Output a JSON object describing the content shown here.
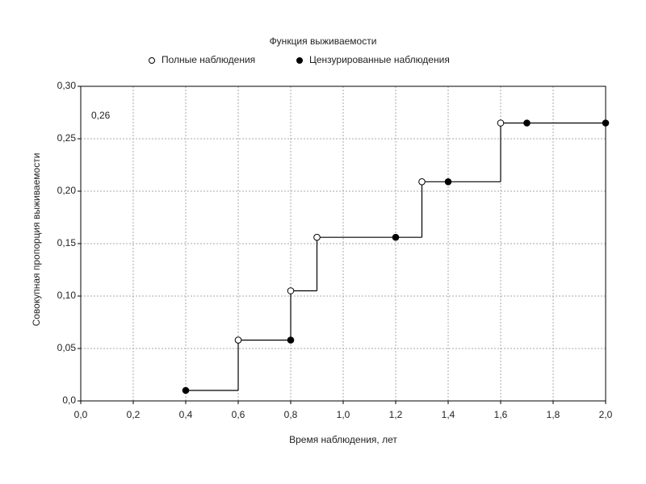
{
  "chart_data": {
    "type": "step",
    "title": "Функция выживаемости",
    "x_label": "Время наблюдения, лет",
    "y_label": "Совокупная пропорция выживаемости",
    "annotation": "0,26",
    "step_line": {
      "color": "#000000",
      "x": [
        0.4,
        0.6,
        0.8,
        0.9,
        1.3,
        1.6,
        2.0
      ],
      "values": [
        0.01,
        0.058,
        0.105,
        0.156,
        0.209,
        0.265,
        0.265
      ]
    },
    "series": [
      {
        "name": "Полные наблюдения",
        "marker": "open",
        "color": "#000000",
        "x": [
          0.6,
          0.8,
          0.9,
          1.3,
          1.6
        ],
        "values": [
          0.058,
          0.105,
          0.156,
          0.209,
          0.265
        ]
      },
      {
        "name": "Цензурированные наблюдения",
        "marker": "filled",
        "color": "#000000",
        "x": [
          0.4,
          0.8,
          1.2,
          1.4,
          1.7,
          2.0
        ],
        "values": [
          0.01,
          0.058,
          0.156,
          0.209,
          0.265,
          0.265
        ]
      }
    ],
    "xlim": [
      0.0,
      2.0
    ],
    "xticks": [
      {
        "value": 0.0,
        "label": "0,0"
      },
      {
        "value": 0.2,
        "label": "0,2"
      },
      {
        "value": 0.4,
        "label": "0,4"
      },
      {
        "value": 0.6,
        "label": "0,6"
      },
      {
        "value": 0.8,
        "label": "0,8"
      },
      {
        "value": 1.0,
        "label": "1,0"
      },
      {
        "value": 1.2,
        "label": "1,2"
      },
      {
        "value": 1.4,
        "label": "1,4"
      },
      {
        "value": 1.6,
        "label": "1,6"
      },
      {
        "value": 1.8,
        "label": "1,8"
      },
      {
        "value": 2.0,
        "label": "2,0"
      }
    ],
    "ylim": [
      0.0,
      0.3
    ],
    "yticks": [
      {
        "value": 0.0,
        "label": "0,0"
      },
      {
        "value": 0.05,
        "label": "0,05"
      },
      {
        "value": 0.1,
        "label": "0,10"
      },
      {
        "value": 0.15,
        "label": "0,15"
      },
      {
        "value": 0.2,
        "label": "0,20"
      },
      {
        "value": 0.25,
        "label": "0,25"
      },
      {
        "value": 0.3,
        "label": "0,30"
      }
    ],
    "grid": true
  }
}
